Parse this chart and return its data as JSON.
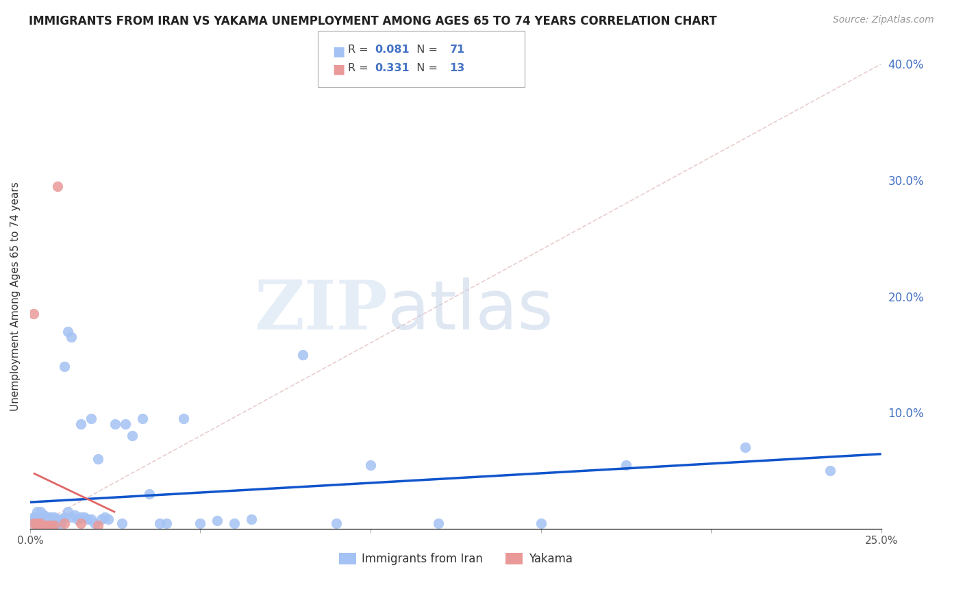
{
  "title": "IMMIGRANTS FROM IRAN VS YAKAMA UNEMPLOYMENT AMONG AGES 65 TO 74 YEARS CORRELATION CHART",
  "source": "Source: ZipAtlas.com",
  "ylabel": "Unemployment Among Ages 65 to 74 years",
  "xlim": [
    0.0,
    0.25
  ],
  "ylim": [
    0.0,
    0.4
  ],
  "xticks": [
    0.0,
    0.05,
    0.1,
    0.15,
    0.2,
    0.25
  ],
  "xticklabels": [
    "0.0%",
    "",
    "",
    "",
    "",
    "25.0%"
  ],
  "yticks_right": [
    0.0,
    0.1,
    0.2,
    0.3,
    0.4
  ],
  "yticklabels_right": [
    "",
    "10.0%",
    "20.0%",
    "30.0%",
    "40.0%"
  ],
  "blue_color": "#a4c2f4",
  "pink_color": "#ea9999",
  "blue_line_color": "#1155cc",
  "pink_line_color": "#e06666",
  "ref_line_color": "#e8c8c8",
  "legend_r_blue": "0.081",
  "legend_n_blue": "71",
  "legend_r_pink": "0.331",
  "legend_n_pink": "13",
  "legend_label_blue": "Immigrants from Iran",
  "legend_label_pink": "Yakama",
  "watermark_zip": "ZIP",
  "watermark_atlas": "atlas",
  "blue_scatter_x": [
    0.001,
    0.001,
    0.001,
    0.002,
    0.002,
    0.002,
    0.002,
    0.002,
    0.003,
    0.003,
    0.003,
    0.003,
    0.003,
    0.004,
    0.004,
    0.004,
    0.004,
    0.005,
    0.005,
    0.005,
    0.005,
    0.006,
    0.006,
    0.006,
    0.007,
    0.007,
    0.007,
    0.008,
    0.008,
    0.009,
    0.009,
    0.01,
    0.01,
    0.011,
    0.011,
    0.012,
    0.012,
    0.013,
    0.014,
    0.015,
    0.015,
    0.016,
    0.017,
    0.018,
    0.018,
    0.019,
    0.02,
    0.021,
    0.022,
    0.023,
    0.025,
    0.027,
    0.028,
    0.03,
    0.033,
    0.035,
    0.038,
    0.04,
    0.045,
    0.05,
    0.055,
    0.06,
    0.065,
    0.08,
    0.09,
    0.1,
    0.12,
    0.15,
    0.175,
    0.21,
    0.235
  ],
  "blue_scatter_y": [
    0.005,
    0.008,
    0.01,
    0.003,
    0.005,
    0.007,
    0.01,
    0.015,
    0.003,
    0.005,
    0.007,
    0.01,
    0.015,
    0.003,
    0.005,
    0.007,
    0.012,
    0.003,
    0.005,
    0.007,
    0.01,
    0.005,
    0.007,
    0.01,
    0.003,
    0.007,
    0.01,
    0.005,
    0.008,
    0.005,
    0.008,
    0.01,
    0.14,
    0.015,
    0.17,
    0.01,
    0.165,
    0.012,
    0.008,
    0.01,
    0.09,
    0.01,
    0.008,
    0.095,
    0.008,
    0.005,
    0.06,
    0.008,
    0.01,
    0.008,
    0.09,
    0.005,
    0.09,
    0.08,
    0.095,
    0.03,
    0.005,
    0.005,
    0.095,
    0.005,
    0.007,
    0.005,
    0.008,
    0.15,
    0.005,
    0.055,
    0.005,
    0.005,
    0.055,
    0.07,
    0.05
  ],
  "pink_scatter_x": [
    0.001,
    0.001,
    0.002,
    0.002,
    0.003,
    0.004,
    0.005,
    0.006,
    0.007,
    0.008,
    0.01,
    0.015,
    0.02
  ],
  "pink_scatter_y": [
    0.005,
    0.185,
    0.003,
    0.005,
    0.005,
    0.003,
    0.003,
    0.003,
    0.003,
    0.295,
    0.005,
    0.005,
    0.003
  ]
}
